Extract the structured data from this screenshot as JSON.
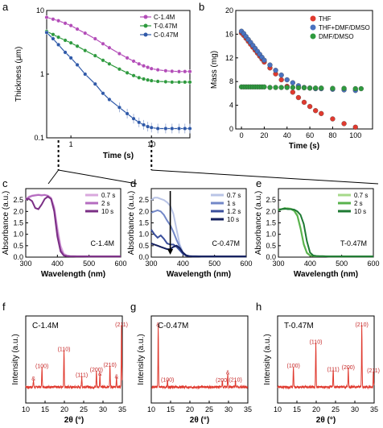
{
  "figure": {
    "panel_letters": [
      "a",
      "b",
      "c",
      "d",
      "e",
      "f",
      "g",
      "h"
    ]
  },
  "chart_data": [
    {
      "panel": "a",
      "type": "line",
      "xscale": "log",
      "yscale": "log",
      "xlabel": "Time (s)",
      "ylabel": "Thickness (μm)",
      "xlim": [
        0.5,
        30
      ],
      "ylim": [
        0.1,
        10
      ],
      "xticks": [
        {
          "v": 1,
          "label": "1"
        },
        {
          "v": 10,
          "label": "10"
        }
      ],
      "yticks": [
        {
          "v": 0.1,
          "label": "0.1"
        },
        {
          "v": 1,
          "label": "1"
        },
        {
          "v": 10,
          "label": "10"
        }
      ],
      "legend_position": "top-right",
      "x": [
        0.5,
        0.6,
        0.7,
        0.85,
        1,
        1.2,
        1.5,
        2,
        2.5,
        3,
        4,
        5,
        6,
        7,
        8,
        9,
        10,
        12,
        15,
        18,
        22,
        26,
        30
      ],
      "series": [
        {
          "name": "C-1.4M",
          "color": "#b34db8",
          "y": [
            7.8,
            7.3,
            6.9,
            6.3,
            5.8,
            5.1,
            4.4,
            3.6,
            3.0,
            2.6,
            2.1,
            1.8,
            1.6,
            1.45,
            1.35,
            1.28,
            1.22,
            1.17,
            1.13,
            1.11,
            1.1,
            1.1,
            1.1
          ]
        },
        {
          "name": "T-0.47M",
          "color": "#2e9a3e",
          "y": [
            4.7,
            4.2,
            3.8,
            3.4,
            3.1,
            2.75,
            2.35,
            1.95,
            1.65,
            1.45,
            1.2,
            1.05,
            0.95,
            0.88,
            0.84,
            0.81,
            0.79,
            0.77,
            0.76,
            0.75,
            0.75,
            0.75,
            0.75
          ]
        },
        {
          "name": "C-0.47M",
          "color": "#2f59a8",
          "y": [
            4.5,
            3.6,
            2.9,
            2.2,
            1.8,
            1.4,
            1.0,
            0.7,
            0.5,
            0.4,
            0.3,
            0.24,
            0.2,
            0.175,
            0.16,
            0.15,
            0.145,
            0.14,
            0.14,
            0.14,
            0.14,
            0.14,
            0.14
          ]
        }
      ]
    },
    {
      "panel": "b",
      "type": "scatter",
      "xlabel": "Time (s)",
      "ylabel": "Mass (mg)",
      "xlim": [
        -5,
        115
      ],
      "ylim": [
        0,
        20
      ],
      "xticks": [
        0,
        20,
        40,
        60,
        80,
        100
      ],
      "yticks": [
        0,
        4,
        8,
        12,
        16,
        20
      ],
      "legend_position": "top-right",
      "series": [
        {
          "name": "THF",
          "color": "#e03a2f",
          "x": [
            0,
            2,
            4,
            6,
            8,
            10,
            12,
            14,
            16,
            18,
            20,
            25,
            30,
            35,
            40,
            45,
            50,
            55,
            60,
            65,
            70,
            80,
            90,
            100
          ],
          "y": [
            16.2,
            15.8,
            15.3,
            14.8,
            14.3,
            13.8,
            13.3,
            12.8,
            12.3,
            11.8,
            11.3,
            10.3,
            9.3,
            8.3,
            7.2,
            6.2,
            5.3,
            4.5,
            3.8,
            3.1,
            2.6,
            1.7,
            0.9,
            0.3
          ]
        },
        {
          "name": "THF+DMF/DMSO",
          "color": "#4a72c0",
          "x": [
            0,
            2,
            4,
            6,
            8,
            10,
            12,
            14,
            16,
            18,
            20,
            25,
            30,
            35,
            40,
            45,
            50,
            55,
            60,
            65,
            70,
            80,
            90,
            100
          ],
          "y": [
            16.5,
            16.1,
            15.6,
            15.1,
            14.6,
            14.1,
            13.6,
            13.1,
            12.6,
            12.1,
            11.6,
            10.8,
            9.9,
            9.1,
            8.3,
            7.8,
            7.3,
            7.0,
            6.9,
            6.8,
            6.8,
            6.7,
            6.6,
            6.5
          ]
        },
        {
          "name": "DMF/DMSO",
          "color": "#2e9a3e",
          "x": [
            0,
            2,
            4,
            6,
            8,
            10,
            12,
            14,
            16,
            18,
            20,
            25,
            30,
            35,
            40,
            45,
            50,
            55,
            60,
            65,
            70,
            80,
            90,
            100,
            105
          ],
          "y": [
            7.1,
            7.1,
            7.1,
            7.1,
            7.1,
            7.1,
            7.1,
            7.1,
            7.1,
            7.1,
            7.1,
            7.0,
            7.0,
            7.0,
            7.0,
            7.0,
            6.95,
            6.95,
            6.9,
            6.9,
            6.9,
            6.85,
            6.85,
            6.8,
            6.8
          ]
        }
      ]
    },
    {
      "panel": "c",
      "type": "line",
      "xlabel": "Wavelength (nm)",
      "ylabel": "Absorbance (a.u.)",
      "xlim": [
        300,
        600
      ],
      "ylim": [
        0,
        3.0
      ],
      "xticks": [
        300,
        400,
        500,
        600
      ],
      "yticks": [
        0,
        0.5,
        1.0,
        1.5,
        2.0,
        2.5
      ],
      "annotation": "C-1.4M",
      "legend_position": "top-right",
      "x": [
        300,
        310,
        320,
        330,
        340,
        350,
        360,
        370,
        380,
        390,
        400,
        410,
        420,
        430,
        440,
        460,
        500,
        550,
        600
      ],
      "series": [
        {
          "name": "0.7 s",
          "color": "#d9a8dd",
          "y": [
            2.55,
            2.65,
            2.7,
            2.72,
            2.74,
            2.72,
            2.73,
            2.7,
            2.6,
            2.2,
            1.3,
            0.5,
            0.15,
            0.08,
            0.05,
            0.04,
            0.03,
            0.03,
            0.03
          ]
        },
        {
          "name": "2 s",
          "color": "#b56cc0",
          "y": [
            2.5,
            2.62,
            2.68,
            2.7,
            2.72,
            2.7,
            2.72,
            2.68,
            2.55,
            2.1,
            1.1,
            0.35,
            0.1,
            0.05,
            0.04,
            0.03,
            0.03,
            0.03,
            0.03
          ]
        },
        {
          "name": "10 s",
          "color": "#7b2f85",
          "y": [
            2.55,
            2.55,
            2.45,
            2.15,
            2.1,
            2.3,
            2.55,
            2.65,
            2.55,
            2.0,
            0.9,
            0.25,
            0.07,
            0.04,
            0.03,
            0.03,
            0.03,
            0.03,
            0.03
          ]
        }
      ]
    },
    {
      "panel": "d",
      "type": "line",
      "xlabel": "Wavelength (nm)",
      "ylabel": "Absorbance (a.u.)",
      "xlim": [
        300,
        600
      ],
      "ylim": [
        0,
        3.0
      ],
      "xticks": [
        300,
        400,
        500,
        600
      ],
      "yticks": [
        0,
        0.5,
        1.0,
        1.5,
        2.0,
        2.5
      ],
      "annotation": "C-0.47M",
      "legend_position": "top-right",
      "x": [
        300,
        310,
        320,
        330,
        340,
        350,
        360,
        370,
        380,
        390,
        400,
        410,
        420,
        430,
        440,
        460,
        500,
        550,
        600
      ],
      "series": [
        {
          "name": "0.7 s",
          "color": "#b9c4e6",
          "y": [
            2.5,
            2.6,
            2.6,
            2.55,
            2.5,
            2.4,
            2.25,
            1.9,
            1.2,
            0.55,
            0.2,
            0.08,
            0.05,
            0.04,
            0.04,
            0.03,
            0.03,
            0.03,
            0.03
          ]
        },
        {
          "name": "1 s",
          "color": "#7388c8",
          "y": [
            1.95,
            2.0,
            2.05,
            2.0,
            1.85,
            1.6,
            1.4,
            1.1,
            0.75,
            0.45,
            0.2,
            0.08,
            0.05,
            0.04,
            0.04,
            0.03,
            0.03,
            0.03,
            0.03
          ]
        },
        {
          "name": "1.2 s",
          "color": "#3b4f9c",
          "y": [
            1.2,
            1.0,
            0.85,
            0.95,
            0.8,
            0.6,
            0.55,
            0.55,
            0.45,
            0.3,
            0.15,
            0.06,
            0.04,
            0.03,
            0.03,
            0.03,
            0.03,
            0.03,
            0.03
          ]
        },
        {
          "name": "10 s",
          "color": "#15205e",
          "y": [
            0.6,
            0.55,
            0.5,
            0.45,
            0.4,
            0.35,
            0.35,
            0.45,
            0.5,
            0.4,
            0.2,
            0.08,
            0.04,
            0.03,
            0.03,
            0.03,
            0.03,
            0.03,
            0.03
          ]
        }
      ]
    },
    {
      "panel": "e",
      "type": "line",
      "xlabel": "Wavelength (nm)",
      "ylabel": "Absorbance (a.u.)",
      "xlim": [
        300,
        600
      ],
      "ylim": [
        0,
        3.0
      ],
      "xticks": [
        300,
        400,
        500,
        600
      ],
      "yticks": [
        0,
        0.5,
        1.0,
        1.5,
        2.0,
        2.5
      ],
      "annotation": "T-0.47M",
      "legend_position": "top-right",
      "x": [
        300,
        310,
        320,
        330,
        340,
        350,
        360,
        370,
        380,
        390,
        400,
        410,
        420,
        430,
        440,
        460,
        500,
        550,
        600
      ],
      "series": [
        {
          "name": "0.7 s",
          "color": "#a6d98a",
          "y": [
            2.05,
            2.1,
            2.1,
            2.15,
            2.12,
            2.05,
            1.85,
            1.3,
            0.6,
            0.2,
            0.08,
            0.05,
            0.04,
            0.04,
            0.04,
            0.03,
            0.03,
            0.03,
            0.03
          ]
        },
        {
          "name": "2 s",
          "color": "#58b24c",
          "y": [
            2.1,
            2.1,
            2.15,
            2.12,
            2.1,
            2.02,
            1.8,
            1.25,
            0.55,
            0.18,
            0.07,
            0.05,
            0.04,
            0.04,
            0.04,
            0.03,
            0.03,
            0.03,
            0.03
          ]
        },
        {
          "name": "10 s",
          "color": "#1e7a33",
          "y": [
            2.05,
            2.1,
            2.12,
            2.1,
            2.1,
            2.08,
            2.0,
            1.85,
            1.45,
            0.7,
            0.2,
            0.07,
            0.05,
            0.04,
            0.04,
            0.03,
            0.03,
            0.03,
            0.03
          ]
        }
      ]
    },
    {
      "panel": "f",
      "type": "line",
      "xlabel": "2θ (°)",
      "ylabel": "Intensity (a.u.)",
      "xlim": [
        10,
        35
      ],
      "xticks": [
        10,
        15,
        20,
        25,
        30,
        35
      ],
      "annotation": "C-1.4M",
      "peaks": [
        {
          "x": 12.0,
          "h": 0.12,
          "label": "&"
        },
        {
          "x": 14.2,
          "h": 0.32,
          "label": "(100)"
        },
        {
          "x": 19.9,
          "h": 0.6,
          "label": "(110)"
        },
        {
          "x": 24.5,
          "h": 0.18,
          "label": "(111)"
        },
        {
          "x": 28.3,
          "h": 0.26,
          "label": "(200)"
        },
        {
          "x": 29.2,
          "h": 0.2,
          "label": "&"
        },
        {
          "x": 31.8,
          "h": 0.34,
          "label": "(210)"
        },
        {
          "x": 33.5,
          "h": 0.15,
          "label": "&"
        },
        {
          "x": 34.8,
          "h": 1.0,
          "label": "(211)"
        }
      ],
      "color": "#e03a2f"
    },
    {
      "panel": "g",
      "type": "line",
      "xlabel": "2θ (°)",
      "ylabel": "Intensity (a.u.)",
      "xlim": [
        10,
        35
      ],
      "xticks": [
        10,
        15,
        20,
        25,
        30,
        35
      ],
      "annotation": "C-0.47M",
      "peaks": [
        {
          "x": 11.8,
          "h": 1.0,
          "label": "&"
        },
        {
          "x": 14.2,
          "h": 0.1,
          "label": "(100)"
        },
        {
          "x": 28.4,
          "h": 0.09,
          "label": "(200)"
        },
        {
          "x": 29.8,
          "h": 0.22,
          "label": "&"
        },
        {
          "x": 31.8,
          "h": 0.1,
          "label": "(210)"
        }
      ],
      "color": "#e03a2f"
    },
    {
      "panel": "h",
      "type": "line",
      "xlabel": "2θ (°)",
      "ylabel": "Intensity (a.u.)",
      "xlim": [
        10,
        35
      ],
      "xticks": [
        10,
        15,
        20,
        25,
        30,
        35
      ],
      "annotation": "T-0.47M",
      "peaks": [
        {
          "x": 14.1,
          "h": 0.33,
          "label": "(100)"
        },
        {
          "x": 19.9,
          "h": 0.72,
          "label": "(110)"
        },
        {
          "x": 24.4,
          "h": 0.27,
          "label": "(111)"
        },
        {
          "x": 28.3,
          "h": 0.3,
          "label": "(200)"
        },
        {
          "x": 31.8,
          "h": 1.0,
          "label": "(210)"
        },
        {
          "x": 34.8,
          "h": 0.25,
          "label": "(211)"
        }
      ],
      "color": "#e03a2f"
    }
  ]
}
